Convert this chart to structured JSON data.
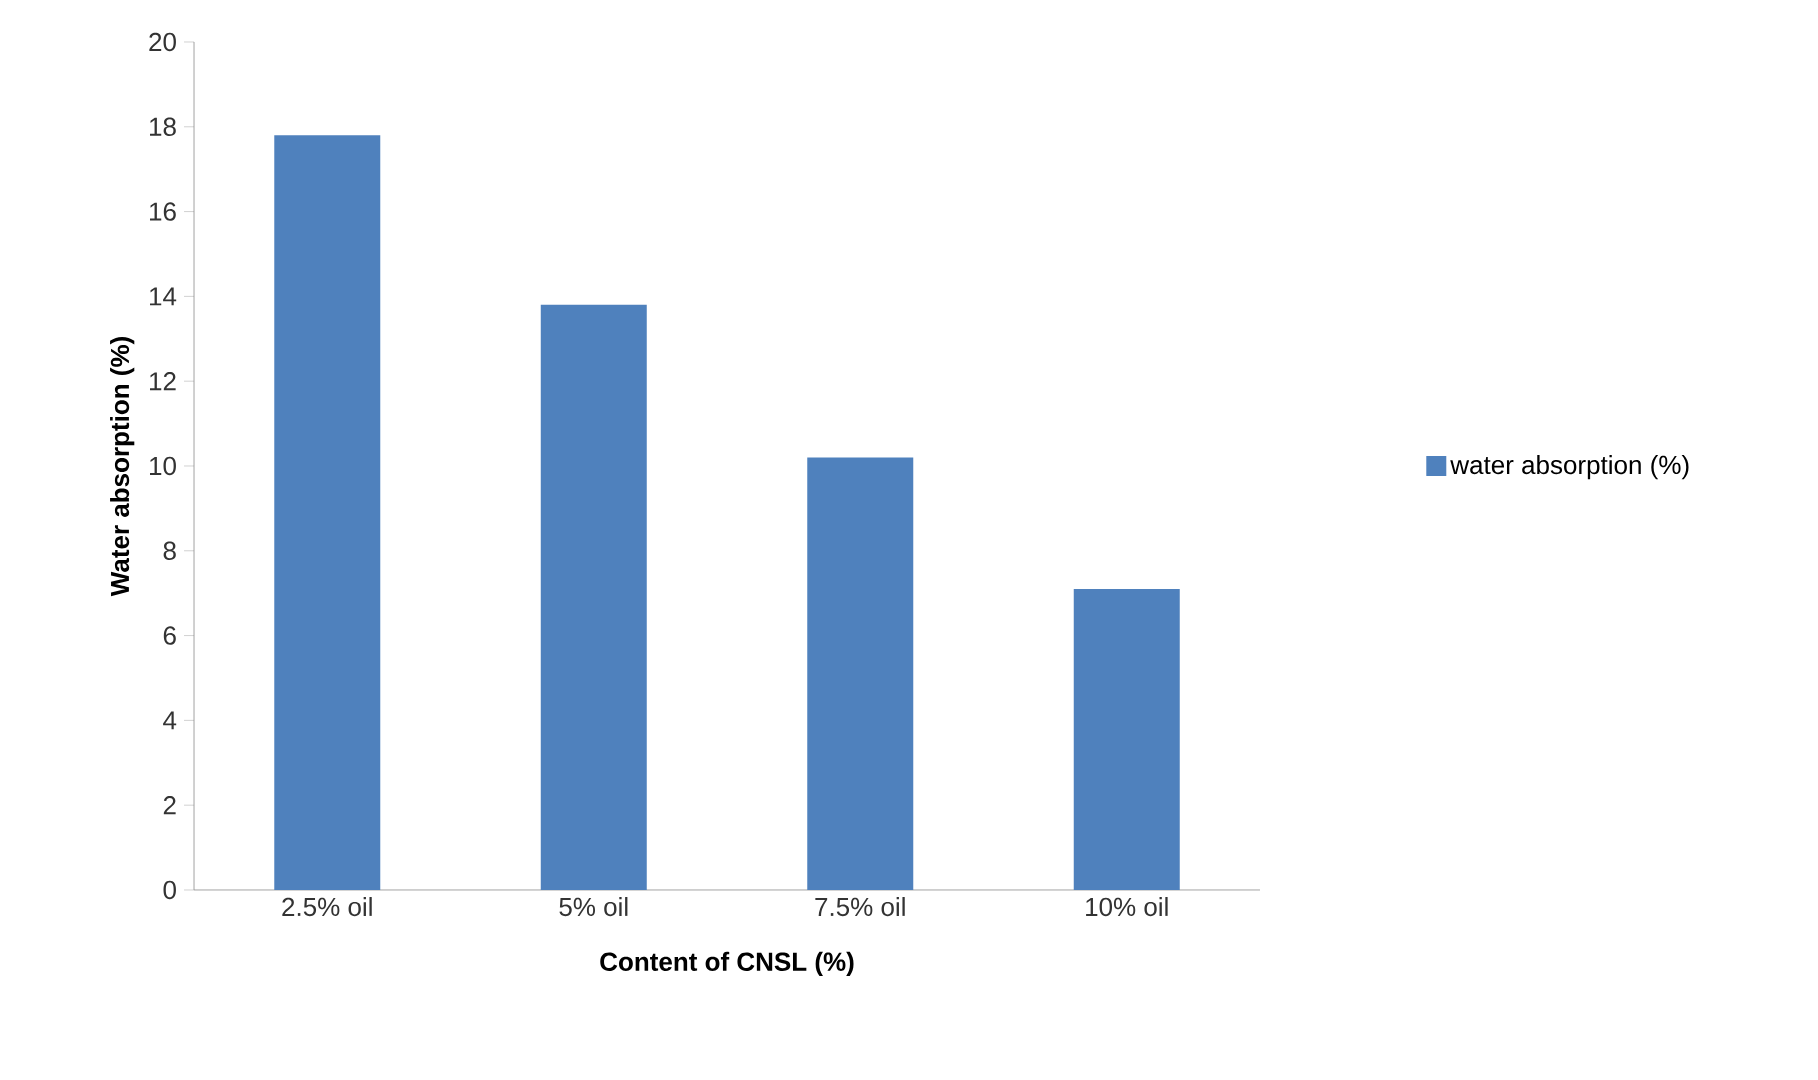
{
  "chart_data": {
    "type": "bar",
    "xlabel": "Content of CNSL (%)",
    "ylabel": "Water absorption (%)",
    "categories": [
      "2.5% oil",
      "5% oil",
      "7.5% oil",
      "10% oil"
    ],
    "series": [
      {
        "name": "water absorption (%)",
        "color": "#4f81bd",
        "values": [
          17.8,
          13.8,
          10.2,
          7.1
        ]
      }
    ],
    "ylim": [
      0,
      20
    ],
    "yticks": [
      0,
      2,
      4,
      6,
      8,
      10,
      12,
      14,
      16,
      18,
      20
    ],
    "grid": false,
    "legend": "right"
  }
}
